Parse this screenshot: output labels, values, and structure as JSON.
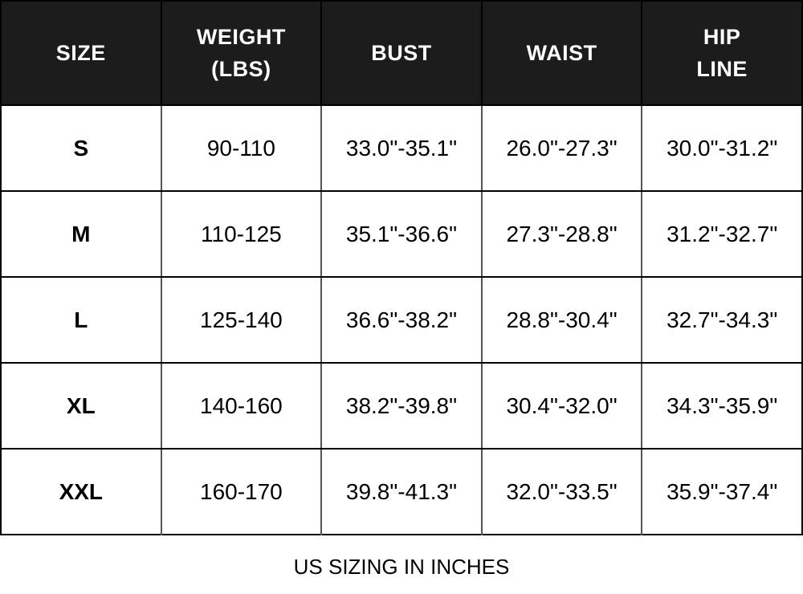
{
  "colors": {
    "header_bg": "#1c1c1c",
    "header_text": "#ffffff",
    "row_bg": "#ffffff",
    "body_text": "#000000",
    "grid_vertical": "#555555",
    "grid_horizontal": "#000000"
  },
  "table": {
    "headers": [
      "SIZE",
      "WEIGHT\n(LBS)",
      "BUST",
      "WAIST",
      "HIP\nLINE"
    ],
    "rows": [
      {
        "cells": [
          "S",
          "90-110",
          "33.0\"-35.1\"",
          "26.0\"-27.3\"",
          "30.0\"-31.2\""
        ]
      },
      {
        "cells": [
          "M",
          "110-125",
          "35.1\"-36.6\"",
          "27.3\"-28.8\"",
          "31.2\"-32.7\""
        ]
      },
      {
        "cells": [
          "L",
          "125-140",
          "36.6\"-38.2\"",
          "28.8\"-30.4\"",
          "32.7\"-34.3\""
        ]
      },
      {
        "cells": [
          "XL",
          "140-160",
          "38.2\"-39.8\"",
          "30.4\"-32.0\"",
          "34.3\"-35.9\""
        ]
      },
      {
        "cells": [
          "XXL",
          "160-170",
          "39.8\"-41.3\"",
          "32.0\"-33.5\"",
          "35.9\"-37.4\""
        ]
      }
    ]
  },
  "footer": {
    "note": "US SIZING IN INCHES"
  },
  "chart_data": {
    "type": "table",
    "columns": [
      "SIZE",
      "WEIGHT (LBS)",
      "BUST",
      "WAIST",
      "HIP LINE"
    ],
    "rows": [
      [
        "S",
        "90-110",
        "33.0\"-35.1\"",
        "26.0\"-27.3\"",
        "30.0\"-31.2\""
      ],
      [
        "M",
        "110-125",
        "35.1\"-36.6\"",
        "27.3\"-28.8\"",
        "31.2\"-32.7\""
      ],
      [
        "L",
        "125-140",
        "36.6\"-38.2\"",
        "28.8\"-30.4\"",
        "32.7\"-34.3\""
      ],
      [
        "XL",
        "140-160",
        "38.2\"-39.8\"",
        "30.4\"-32.0\"",
        "34.3\"-35.9\""
      ],
      [
        "XXL",
        "160-170",
        "39.8\"-41.3\"",
        "32.0\"-33.5\"",
        "35.9\"-37.4\""
      ]
    ],
    "note": "US SIZING IN INCHES"
  }
}
